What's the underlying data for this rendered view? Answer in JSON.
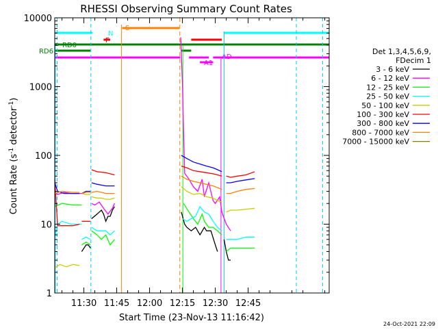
{
  "chart_data": {
    "type": "line",
    "title": "RHESSI Observing Summary Count Rates",
    "xlabel": "Start Time (23-Nov-13 11:16:42)",
    "ylabel_main": "Count Rate (s",
    "ylabel_sup": "-1",
    "ylabel_tail": " detector",
    "ylabel_sup2": "-1",
    "ylabel_end": ")",
    "y_log": true,
    "ylim": [
      1,
      10000
    ],
    "xlim_min": [
      16.7,
      142
    ],
    "x_ticks": [
      {
        "min": 30,
        "label": "11:30"
      },
      {
        "min": 45,
        "label": "11:45"
      },
      {
        "min": 60,
        "label": "12:00"
      },
      {
        "min": 75,
        "label": "12:15"
      },
      {
        "min": 90,
        "label": "12:30"
      },
      {
        "min": 105,
        "label": "12:45"
      }
    ],
    "y_ticks": [
      {
        "value": 1,
        "label": "1"
      },
      {
        "value": 10,
        "label": "10"
      },
      {
        "value": 100,
        "label": "100"
      },
      {
        "value": 1000,
        "label": "1000"
      },
      {
        "value": 10000,
        "label": "10000"
      }
    ],
    "legend": {
      "header": [
        "Det 1,3,4,5,6,9,",
        "FDecim 1"
      ],
      "placement": "right"
    },
    "series": [
      {
        "name": "3 - 6 keV",
        "color": "#000000",
        "segments": [
          [
            [
              29,
              4
            ],
            [
              31,
              5
            ],
            [
              32,
              5
            ],
            [
              33,
              4.5
            ]
          ],
          [
            [
              33.5,
              12
            ],
            [
              36,
              14
            ],
            [
              38,
              16
            ],
            [
              39,
              14
            ],
            [
              40,
              11
            ],
            [
              41,
              13
            ],
            [
              42,
              13
            ],
            [
              43,
              16
            ],
            [
              44,
              18
            ]
          ],
          [
            [
              74.5,
              15
            ],
            [
              76,
              10
            ],
            [
              77,
              9
            ],
            [
              79,
              8
            ],
            [
              81,
              9
            ],
            [
              83,
              7
            ],
            [
              85,
              9
            ],
            [
              86,
              8
            ],
            [
              88,
              8
            ],
            [
              90,
              5
            ],
            [
              91,
              4
            ]
          ],
          [
            [
              94,
              6
            ],
            [
              95,
              4
            ],
            [
              96,
              3
            ],
            [
              97,
              3
            ]
          ]
        ]
      },
      {
        "name": "6 - 12 keV",
        "color": "#ff00ff",
        "segments": [
          [
            [
              16.7,
              28
            ],
            [
              18,
              27
            ],
            [
              21,
              29
            ],
            [
              24,
              28
            ],
            [
              27,
              28
            ],
            [
              29,
              28
            ]
          ],
          [
            [
              33.5,
              20
            ],
            [
              35,
              19
            ],
            [
              37,
              21
            ],
            [
              39,
              17
            ],
            [
              41,
              14
            ],
            [
              43,
              17
            ],
            [
              44,
              20
            ]
          ],
          [
            [
              74.2,
              5200
            ],
            [
              74.6,
              2500
            ],
            [
              75,
              1100
            ],
            [
              75.4,
              300
            ],
            [
              76,
              55
            ],
            [
              78,
              45
            ],
            [
              80,
              35
            ],
            [
              82,
              30
            ],
            [
              84,
              45
            ],
            [
              85,
              25
            ],
            [
              87,
              40
            ],
            [
              89,
              22
            ],
            [
              90,
              20
            ],
            [
              92,
              25
            ],
            [
              93,
              15
            ],
            [
              95,
              10
            ],
            [
              97,
              8
            ]
          ]
        ]
      },
      {
        "name": "12 - 25 keV",
        "color": "#00ff00",
        "segments": [
          [
            [
              16.7,
              18
            ],
            [
              20,
              20
            ],
            [
              25,
              19
            ],
            [
              29,
              19
            ]
          ],
          [
            [
              29,
              5
            ],
            [
              31,
              5.5
            ],
            [
              33,
              5
            ]
          ],
          [
            [
              33.5,
              8
            ],
            [
              36,
              7
            ],
            [
              38,
              6
            ],
            [
              40,
              7
            ],
            [
              42,
              5
            ],
            [
              44,
              6
            ]
          ],
          [
            [
              75.5,
              20
            ],
            [
              78,
              15
            ],
            [
              80,
              12
            ],
            [
              82,
              10
            ],
            [
              84,
              14
            ],
            [
              85,
              11
            ],
            [
              87,
              9
            ],
            [
              89,
              9
            ],
            [
              91,
              8
            ],
            [
              93,
              7
            ]
          ],
          [
            [
              95,
              4
            ],
            [
              97,
              4.5
            ],
            [
              100,
              4.5
            ],
            [
              104,
              4.5
            ],
            [
              108,
              4.5
            ]
          ]
        ]
      },
      {
        "name": "25 - 50 keV",
        "color": "#00ffff",
        "segments": [
          [
            [
              16.7,
              6
            ],
            [
              18,
              10
            ],
            [
              20,
              11
            ],
            [
              24,
              10
            ],
            [
              27,
              10
            ],
            [
              29,
              10
            ]
          ],
          [
            [
              29,
              6
            ],
            [
              31,
              6.5
            ],
            [
              33,
              6
            ]
          ],
          [
            [
              33.5,
              9
            ],
            [
              36,
              8
            ],
            [
              38,
              8
            ],
            [
              40,
              8
            ],
            [
              42,
              7
            ],
            [
              44,
              8
            ]
          ],
          [
            [
              75,
              12
            ],
            [
              77,
              11
            ],
            [
              79,
              12
            ],
            [
              81,
              13
            ],
            [
              83,
              18
            ],
            [
              85,
              15
            ],
            [
              87,
              14
            ],
            [
              89,
              11
            ],
            [
              91,
              9
            ],
            [
              93,
              8
            ]
          ],
          [
            [
              95,
              6
            ],
            [
              97,
              6
            ],
            [
              100,
              6
            ],
            [
              104,
              6.5
            ],
            [
              108,
              6.5
            ]
          ]
        ]
      },
      {
        "name": "50 - 100 keV",
        "color": "#cccc00",
        "segments": [
          [
            [
              16.7,
              2.3
            ],
            [
              19,
              2.6
            ],
            [
              22,
              2.4
            ],
            [
              25,
              2.6
            ],
            [
              28,
              2.5
            ]
          ],
          [
            [
              29,
              28
            ],
            [
              31,
              27
            ],
            [
              33,
              27
            ]
          ],
          [
            [
              33.5,
              25
            ],
            [
              36,
              24
            ],
            [
              38,
              24
            ],
            [
              40,
              23
            ],
            [
              42,
              23
            ],
            [
              44,
              24
            ]
          ],
          [
            [
              74.5,
              35
            ],
            [
              77,
              30
            ],
            [
              80,
              27
            ],
            [
              83,
              28
            ],
            [
              86,
              25
            ],
            [
              89,
              24
            ],
            [
              91,
              22
            ],
            [
              93,
              21
            ]
          ],
          [
            [
              95,
              15
            ],
            [
              97,
              16
            ],
            [
              100,
              16
            ],
            [
              104,
              16.5
            ],
            [
              108,
              17
            ]
          ]
        ]
      },
      {
        "name": "100 - 300 keV",
        "color": "#ff0000",
        "segments": [
          [
            [
              16.7,
              45
            ],
            [
              18,
              9.5
            ],
            [
              21,
              9.5
            ],
            [
              25,
              9.5
            ],
            [
              28,
              10
            ]
          ],
          [
            [
              29,
              11
            ],
            [
              31,
              11
            ],
            [
              33,
              11
            ]
          ],
          [
            [
              33.5,
              62
            ],
            [
              36,
              58
            ],
            [
              38,
              57
            ],
            [
              40,
              56
            ],
            [
              42,
              54
            ],
            [
              44,
              52
            ]
          ],
          [
            [
              74.5,
              70
            ],
            [
              77,
              66
            ],
            [
              80,
              60
            ],
            [
              83,
              58
            ],
            [
              86,
              56
            ],
            [
              89,
              54
            ],
            [
              91,
              52
            ],
            [
              93,
              50
            ]
          ],
          [
            [
              95,
              50
            ],
            [
              97,
              48
            ],
            [
              100,
              50
            ],
            [
              104,
              52
            ],
            [
              108,
              58
            ]
          ]
        ]
      },
      {
        "name": "300 - 800 keV",
        "color": "#0000ff",
        "segments": [
          [
            [
              16.7,
              40
            ],
            [
              18,
              30
            ],
            [
              21,
              28
            ],
            [
              25,
              28
            ],
            [
              28,
              28
            ]
          ],
          [
            [
              29,
              28
            ],
            [
              31,
              30
            ],
            [
              33,
              30
            ]
          ],
          [
            [
              33.5,
              40
            ],
            [
              36,
              38
            ],
            [
              38,
              37
            ],
            [
              40,
              36
            ],
            [
              42,
              36
            ],
            [
              44,
              36
            ]
          ],
          [
            [
              74.5,
              100
            ],
            [
              77,
              90
            ],
            [
              80,
              80
            ],
            [
              83,
              75
            ],
            [
              86,
              70
            ],
            [
              89,
              66
            ],
            [
              91,
              62
            ],
            [
              93,
              58
            ]
          ],
          [
            [
              95,
              40
            ],
            [
              97,
              40
            ],
            [
              100,
              42
            ],
            [
              104,
              44
            ],
            [
              108,
              46
            ]
          ]
        ]
      },
      {
        "name": "800 - 7000 keV",
        "color": "#ff8000",
        "segments": [
          [
            [
              16.7,
              28
            ],
            [
              20,
              30
            ],
            [
              25,
              29
            ],
            [
              28,
              29
            ]
          ],
          [
            [
              29,
              28
            ],
            [
              31,
              29
            ],
            [
              33,
              29
            ]
          ],
          [
            [
              33.5,
              29
            ],
            [
              36,
              30
            ],
            [
              38,
              29
            ],
            [
              40,
              28
            ],
            [
              42,
              28
            ],
            [
              44,
              28
            ]
          ],
          [
            [
              74.5,
              50
            ],
            [
              77,
              45
            ],
            [
              80,
              42
            ],
            [
              83,
              40
            ],
            [
              86,
              38
            ],
            [
              89,
              36
            ],
            [
              91,
              34
            ],
            [
              93,
              32
            ]
          ],
          [
            [
              95,
              28
            ],
            [
              97,
              28
            ],
            [
              100,
              30
            ],
            [
              104,
              32
            ],
            [
              108,
              33
            ]
          ]
        ]
      },
      {
        "name": "7000 - 15000 keV",
        "color": "#808000",
        "segments": []
      }
    ],
    "orbit_flags": {
      "labels": {
        "rd0": "RD0",
        "rd6": "RD6",
        "n": "N",
        "f": "F",
        "s": "S",
        "a1": "A1",
        "ad": "AD"
      }
    }
  },
  "footer": {
    "timestamp": "24-Oct-2021 22:09"
  }
}
